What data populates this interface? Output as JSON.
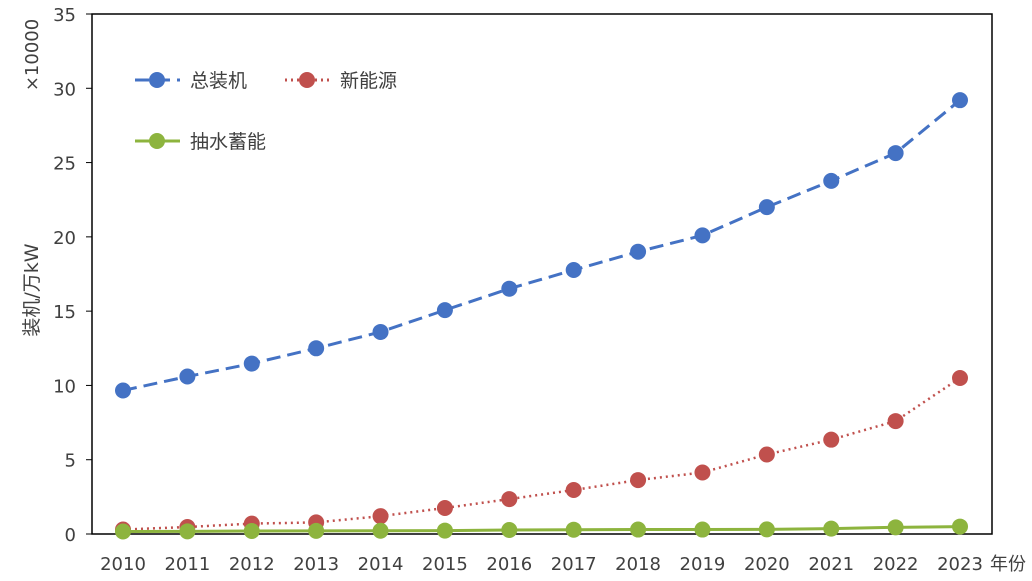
{
  "chart_data": {
    "type": "line",
    "title": "",
    "xlabel": "年份",
    "ylabel": "装机/万kW",
    "y_multiplier_label": "×10000",
    "ylim": [
      0,
      35
    ],
    "yticks": [
      0,
      5,
      10,
      15,
      20,
      25,
      30,
      35
    ],
    "grid": false,
    "legend_position": "top-left",
    "x": [
      2010,
      2011,
      2012,
      2013,
      2014,
      2015,
      2016,
      2017,
      2018,
      2019,
      2020,
      2021,
      2022,
      2023
    ],
    "series": [
      {
        "name": "总装机",
        "color": "#4472C4",
        "line_style": "dashed",
        "values": [
          9.66,
          10.6,
          11.47,
          12.5,
          13.6,
          15.07,
          16.51,
          17.77,
          19.0,
          20.1,
          22.0,
          23.77,
          25.64,
          29.2
        ]
      },
      {
        "name": "新能源",
        "color": "#C0504D",
        "line_style": "dotted",
        "values": [
          0.3,
          0.47,
          0.7,
          0.78,
          1.2,
          1.75,
          2.35,
          2.96,
          3.63,
          4.14,
          5.35,
          6.35,
          7.6,
          10.5
        ]
      },
      {
        "name": "抽水蓄能",
        "color": "#8DB43E",
        "line_style": "solid",
        "values": [
          0.17,
          0.18,
          0.2,
          0.21,
          0.22,
          0.23,
          0.27,
          0.29,
          0.3,
          0.3,
          0.31,
          0.36,
          0.45,
          0.5
        ]
      }
    ]
  }
}
